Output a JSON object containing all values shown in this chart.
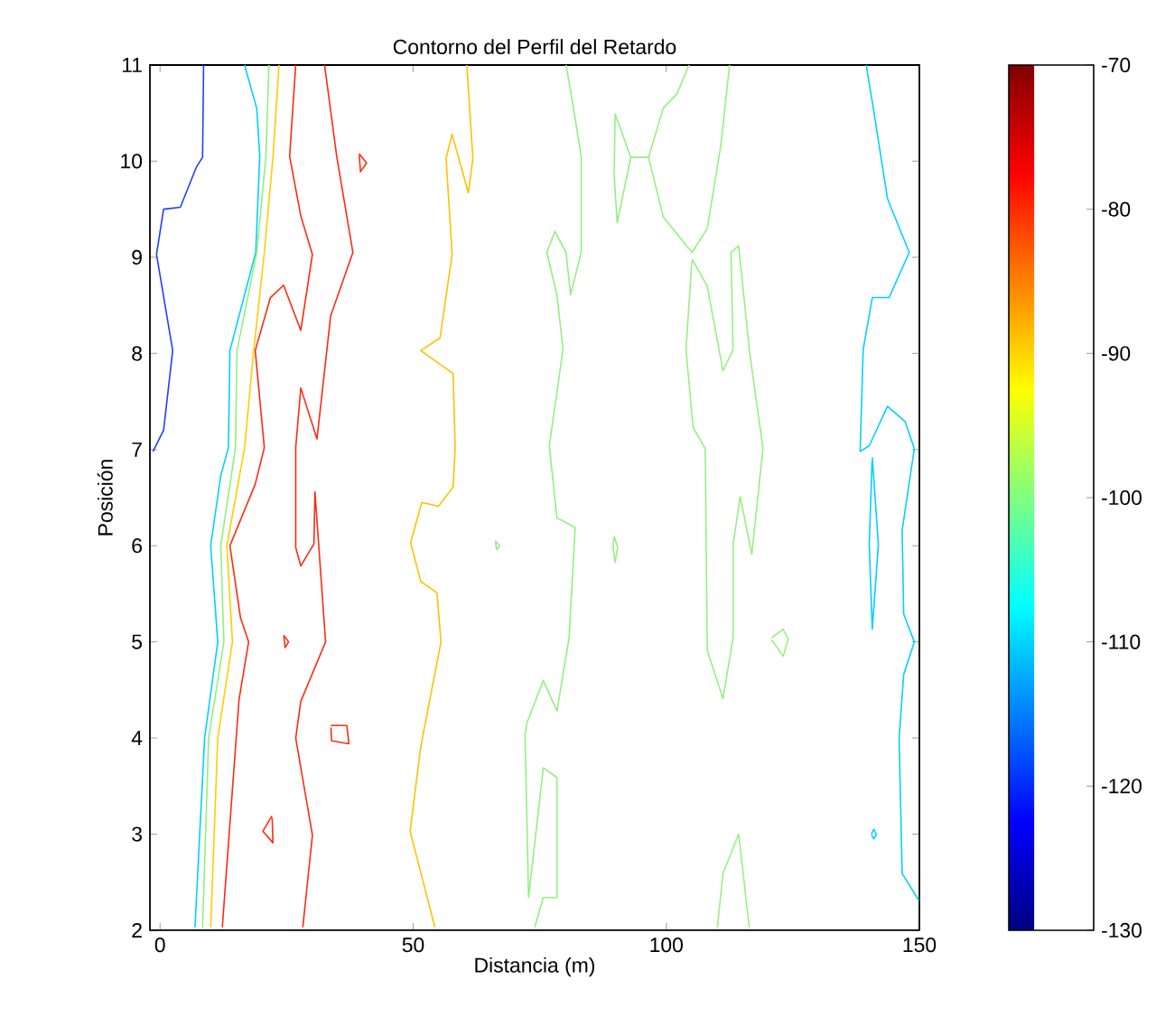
{
  "chart_data": {
    "type": "line",
    "title": "Contorno del Perfil del Retardo",
    "xlabel": "Distancia (m)",
    "ylabel": "Posición",
    "xlim": [
      -2,
      150
    ],
    "ylim": [
      2,
      11
    ],
    "xticks": [
      0,
      50,
      100,
      150
    ],
    "yticks": [
      2,
      3,
      4,
      5,
      6,
      7,
      8,
      9,
      10,
      11
    ],
    "clim": [
      -130,
      -70
    ],
    "cticks": [
      -130,
      -120,
      -110,
      -100,
      -90,
      -80,
      -70
    ],
    "series": [
      {
        "color": "#1f3fff",
        "x": [
          8.6,
          8.4,
          7.2,
          4.0,
          0.7,
          -0.7,
          2.5,
          0.7,
          -1.4
        ],
        "values": [
          11,
          10.04,
          9.94,
          9.52,
          9.5,
          9.03,
          8.03,
          7.2,
          6.98
        ]
      },
      {
        "color": "#00d0ff",
        "x": [
          16.7,
          19.1,
          19.7,
          18.9,
          13.8,
          13.5,
          12.0,
          10.0,
          11.4,
          8.8,
          6.9
        ],
        "values": [
          11,
          10.55,
          10.05,
          9.05,
          8.03,
          7.02,
          6.73,
          6.0,
          5.0,
          4.0,
          2.03
        ]
      },
      {
        "color": "#90f080",
        "x": [
          21.5,
          20.9,
          19.1,
          15.2,
          14.9,
          12.0,
          12.6,
          9.6,
          8.4
        ],
        "values": [
          11,
          10.04,
          9.05,
          8.03,
          7.02,
          6.0,
          5.0,
          4.0,
          2.03
        ]
      },
      {
        "color": "#ffcc00",
        "x": [
          23.5,
          22.3,
          20.6,
          18.5,
          16.7,
          13.2,
          14.3,
          11.4,
          10.0
        ],
        "values": [
          11,
          10.04,
          9.05,
          8.03,
          7.02,
          6.0,
          5.0,
          4.0,
          2.03
        ]
      },
      {
        "color": "#ff2a10",
        "x": [
          26.8,
          25.6,
          27.8,
          30.1,
          27.8,
          24.4,
          21.8,
          18.8,
          20.6,
          18.8,
          13.8,
          15.9,
          17.5,
          15.6,
          12.3
        ],
        "values": [
          11,
          10.05,
          9.43,
          9.03,
          8.24,
          8.71,
          8.58,
          8.03,
          7.02,
          6.64,
          6.0,
          5.25,
          5.0,
          4.4,
          2.03
        ]
      },
      {
        "color": "#ff2a10",
        "x": [
          32.5,
          34.9,
          38.1,
          33.7,
          31.0,
          27.8,
          26.8,
          26.8,
          27.8,
          30.4,
          30.6,
          32.7,
          27.8,
          26.8,
          30.1,
          28.2
        ],
        "values": [
          11,
          10.05,
          9.05,
          8.39,
          7.11,
          7.64,
          7.02,
          5.98,
          5.79,
          6.02,
          6.56,
          5.0,
          4.38,
          4.0,
          2.99,
          2.03
        ]
      },
      {
        "color": "#ff2b10",
        "x": [
          39.3,
          40.8,
          39.6,
          39.35
        ],
        "values": [
          10.08,
          9.98,
          9.89,
          10.06
        ]
      },
      {
        "color": "#ff2c10",
        "x": [
          33.7,
          36.9,
          37.3,
          33.9,
          33.75
        ],
        "values": [
          4.13,
          4.13,
          3.94,
          3.97,
          4.11
        ]
      },
      {
        "color": "#ff2d10",
        "x": [
          22.1,
          20.3,
          22.3,
          22.15
        ],
        "values": [
          3.19,
          3.03,
          2.91,
          3.17
        ]
      },
      {
        "color": "#ff2e10",
        "x": [
          24.4,
          25.4,
          24.7,
          24.45
        ],
        "values": [
          5.07,
          5.0,
          4.94,
          5.06
        ]
      },
      {
        "color": "#ffc100",
        "x": [
          60.6,
          61.8,
          60.9,
          57.7,
          56.5,
          57.7,
          55.3,
          51.5,
          57.9,
          58.3,
          57.9,
          55.0,
          51.7,
          49.5,
          51.5,
          54.7,
          55.5,
          51.5,
          49.4,
          51.7,
          54.3
        ],
        "values": [
          11,
          10.03,
          9.67,
          10.28,
          10.03,
          9.03,
          8.16,
          8.03,
          7.79,
          7.02,
          6.61,
          6.41,
          6.45,
          6.03,
          5.63,
          5.51,
          5.0,
          3.91,
          3.03,
          2.56,
          2.03
        ]
      },
      {
        "color": "#91f080",
        "x": [
          66.2,
          67.1,
          66.5,
          66.25
        ],
        "values": [
          6.05,
          6.0,
          5.96,
          6.04
        ]
      },
      {
        "color": "#92f080",
        "x": [
          80.2,
          81.4,
          83.2,
          83.2,
          81.1,
          80.2,
          78.0,
          76.4,
          78.4,
          79.6,
          76.9,
          78.4,
          82.0,
          80.8,
          78.4,
          75.7,
          72.5,
          72.1,
          72.8,
          75.7,
          78.4,
          78.4,
          75.7,
          74.0
        ],
        "values": [
          11,
          10.64,
          10.05,
          9.05,
          8.61,
          9.05,
          9.27,
          9.05,
          8.61,
          8.04,
          7.04,
          6.29,
          6.19,
          5.04,
          4.28,
          4.6,
          4.16,
          4.03,
          2.34,
          3.69,
          3.59,
          2.34,
          2.34,
          2.03
        ]
      },
      {
        "color": "#93f080",
        "x": [
          89.7,
          90.4,
          89.9,
          89.5,
          89.65
        ],
        "values": [
          6.1,
          5.98,
          5.83,
          5.98,
          6.08
        ]
      },
      {
        "color": "#94f080",
        "x": [
          96.5,
          93.0,
          89.9,
          89.7,
          90.3,
          93.0
        ],
        "values": [
          10.04,
          10.04,
          10.49,
          9.86,
          9.36,
          10.04
        ]
      },
      {
        "color": "#95f080",
        "x": [
          104.5,
          102.1,
          99.4,
          96.5,
          99.4,
          105.1,
          108.1,
          110.8,
          112.5
        ],
        "values": [
          11,
          10.7,
          10.55,
          10.04,
          9.42,
          9.05,
          9.3,
          10.17,
          11
        ]
      },
      {
        "color": "#96f080",
        "x": [
          105.1,
          108.1,
          111.2,
          113.2,
          112.8,
          114.3,
          116.4,
          119.1,
          116.9,
          114.6,
          113.2,
          113.2,
          111.2,
          108.1,
          107.7,
          105.3,
          103.9,
          105.05
        ],
        "values": [
          8.98,
          8.7,
          7.82,
          8.04,
          9.05,
          9.12,
          8.04,
          7.01,
          5.91,
          6.51,
          6.01,
          5.04,
          4.41,
          4.91,
          7.01,
          7.23,
          8.04,
          8.96
        ]
      },
      {
        "color": "#97f080",
        "x": [
          120.7,
          123.1,
          124.1,
          123.1,
          120.8
        ],
        "values": [
          5.04,
          5.13,
          5.03,
          4.85,
          5.02
        ]
      },
      {
        "color": "#98f080",
        "x": [
          110.1,
          111.2,
          114.3,
          116.4
        ],
        "values": [
          2.03,
          2.59,
          3.0,
          2.03
        ]
      },
      {
        "color": "#03d0ff",
        "x": [
          139.5,
          140.9,
          143.7,
          148.0,
          144.0,
          140.7,
          138.9,
          138.3,
          140.1,
          143.7,
          147.2,
          149.0,
          146.6,
          146.9,
          149.0,
          146.9,
          146.0,
          146.6,
          149.9
        ],
        "values": [
          11,
          10.55,
          9.61,
          9.05,
          8.58,
          8.58,
          8.04,
          6.98,
          7.04,
          7.45,
          7.29,
          7.01,
          6.16,
          5.29,
          5.0,
          4.66,
          4.0,
          2.59,
          2.31
        ]
      },
      {
        "color": "#01d0ff",
        "x": [
          140.7,
          141.9,
          140.7,
          140.1,
          140.65
        ],
        "values": [
          6.92,
          6.01,
          5.13,
          6.01,
          6.88
        ]
      },
      {
        "color": "#02d0ff",
        "x": [
          140.5,
          141.0,
          141.5,
          141.0,
          140.55
        ],
        "values": [
          3.0,
          3.05,
          3.0,
          2.95,
          2.99
        ]
      }
    ]
  }
}
